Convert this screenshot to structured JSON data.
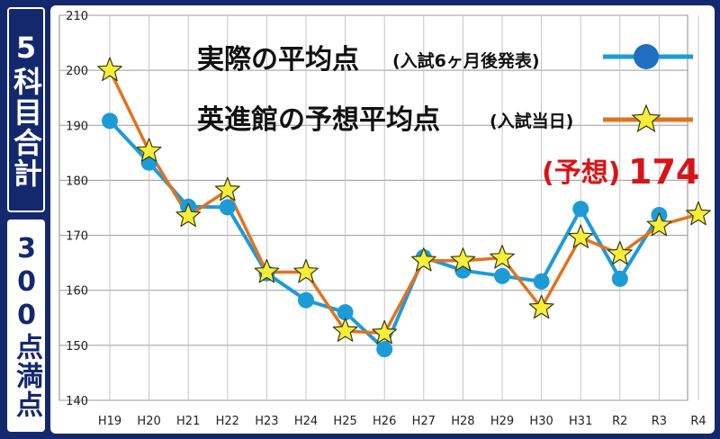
{
  "side_labels": {
    "top": "5科目合計",
    "bottom": "300点満点"
  },
  "colors": {
    "actual": "#1d9bd7",
    "actual_dot": "#1e6fc0",
    "forecast": "#e2731e",
    "star": "#f7ee3a",
    "frame": "#14286e",
    "forecast_text": "#d81418"
  },
  "legend": {
    "actual_main": "実際の平均点",
    "actual_sub": "(入試6ヶ月後発表)",
    "forecast_main": "英進館の予想平均点",
    "forecast_sub": "(入試当日)"
  },
  "annotation": {
    "prefix": "(予想)",
    "value": "174"
  },
  "chart_data": {
    "type": "line",
    "title": "",
    "xlabel": "",
    "ylabel": "",
    "ylim": [
      140,
      210
    ],
    "yticks": [
      140,
      150,
      160,
      170,
      180,
      190,
      200,
      210
    ],
    "grid": true,
    "categories": [
      "H19",
      "H20",
      "H21",
      "H22",
      "H23",
      "H24",
      "H25",
      "H26",
      "H27",
      "H28",
      "H29",
      "H30",
      "H31",
      "R2",
      "R3",
      "R4"
    ],
    "series": [
      {
        "name": "実際の平均点(入試6ヶ月後発表)",
        "marker": "circle",
        "values": [
          190.8,
          183.2,
          175.2,
          175.1,
          163.1,
          158.2,
          156.0,
          149.3,
          166.0,
          163.6,
          162.6,
          161.6,
          174.8,
          162.1,
          173.7,
          null
        ]
      },
      {
        "name": "英進館の予想平均点(入試当日)",
        "marker": "star",
        "values": [
          200.0,
          185.3,
          173.5,
          178.2,
          163.3,
          163.3,
          152.6,
          152.2,
          165.4,
          165.4,
          165.9,
          156.8,
          169.6,
          166.6,
          171.8,
          173.8
        ]
      }
    ]
  }
}
